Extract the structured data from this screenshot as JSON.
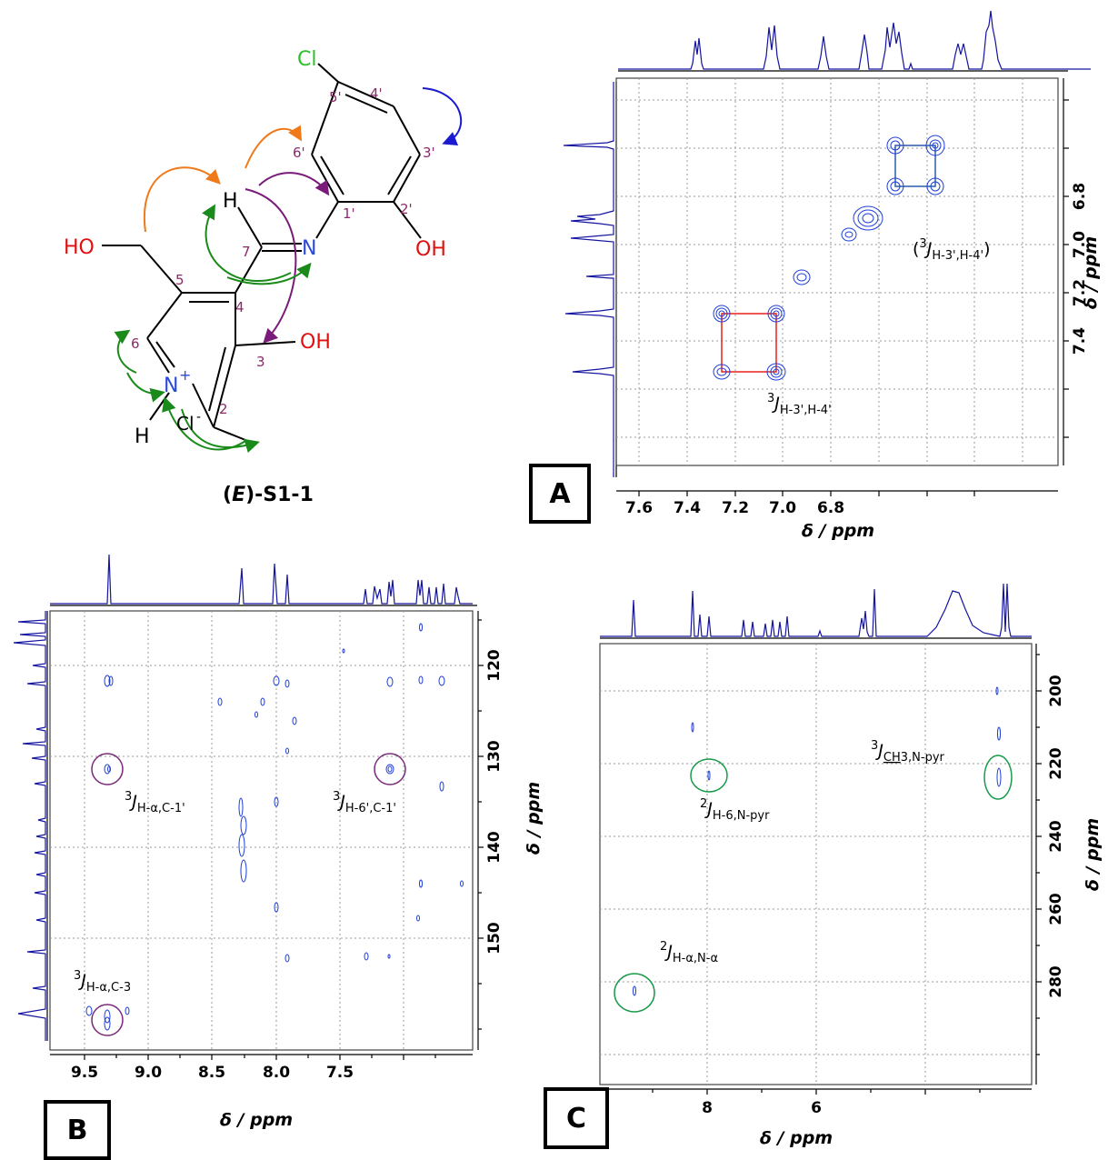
{
  "compound": {
    "name_prefix": "(",
    "name_italic": "E",
    "name_suffix": ")-S1-1",
    "atoms": {
      "cl": "Cl",
      "ho_left": "HO",
      "oh_right": "OH",
      "oh_ring": "OH",
      "n_imine": "N",
      "n_pyr": "N",
      "n_charge": "+",
      "h_imine": "H",
      "h_nh": "H",
      "cl_counter": "Cl",
      "cl_counter_charge": "-"
    },
    "numbering": [
      "5'",
      "4'",
      "3'",
      "2'",
      "1'",
      "6'",
      "7",
      "5",
      "4",
      "3",
      "2",
      "6"
    ],
    "arrow_colors": {
      "orange": "#f07a1a",
      "purple": "#7a1b7a",
      "green": "#1a8a1a",
      "blue": "#1a1ad0"
    }
  },
  "panels": {
    "A": {
      "label": "A",
      "x_title": "δ / ppm",
      "y_title": "δ / ppm",
      "x_ticks": [
        "7.6",
        "7.4",
        "7.2",
        "7.0",
        "6.8"
      ],
      "y_ticks": [
        "6.8",
        "7.0",
        "7.2",
        "7.4"
      ],
      "annotations": [
        {
          "pre": "3",
          "main": "J",
          "sub": "H-3',H-4'",
          "open": "",
          "close": ""
        },
        {
          "pre": "3",
          "main": "J",
          "sub": "H-3',H-4'",
          "open": "(",
          "close": ")"
        }
      ]
    },
    "B": {
      "label": "B",
      "x_title": "δ / ppm",
      "y_title": "δ / ppm",
      "x_ticks": [
        "9.5",
        "9.0",
        "8.5",
        "8.0",
        "7.5"
      ],
      "y_ticks": [
        "120",
        "130",
        "140",
        "150"
      ],
      "annotations": [
        {
          "pre": "3",
          "main": "J",
          "sub": "H-α,C-1'"
        },
        {
          "pre": "3",
          "main": "J",
          "sub": "H-6',C-1'"
        },
        {
          "pre": "3",
          "main": "J",
          "sub": "H-α,C-3"
        }
      ]
    },
    "C": {
      "label": "C",
      "x_title": "δ / ppm",
      "y_title": "δ / ppm",
      "x_ticks": [
        "8",
        "6"
      ],
      "y_ticks": [
        "200",
        "220",
        "240",
        "260",
        "280"
      ],
      "annotations": [
        {
          "pre": "3",
          "main": "J",
          "sub_u": "CH",
          "sub_rest": "3,N-pyr"
        },
        {
          "pre": "2",
          "main": "J",
          "sub": "H-6,N-pyr"
        },
        {
          "pre": "2",
          "main": "J",
          "sub": "H-α,N-α"
        }
      ]
    }
  },
  "colors": {
    "contour": "#1f3fd8",
    "spectrum": "#1414a0",
    "red_box": "#e8201c",
    "blue_box": "#2a5aa8",
    "circle_purple": "#7a2a7a",
    "circle_green": "#1a9a4a",
    "label_num": "#8a2a6a",
    "heteroatom_red": "#e01010",
    "heteroatom_blue": "#2a4ad8",
    "cl_green": "#2ac02a"
  }
}
